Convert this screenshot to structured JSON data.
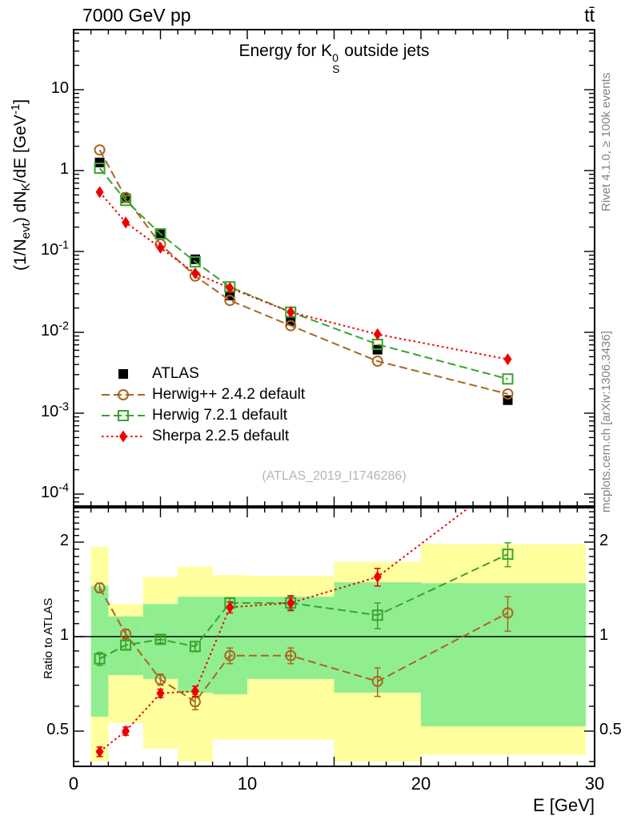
{
  "header": {
    "left_title": "7000 GeV pp",
    "right_title": "tt̄"
  },
  "side_notes": {
    "top_rotated": "Rivet 4.1.0, ≥ 100k events",
    "bottom_rotated": "mcplots.cern.ch [arXiv:1306.3436]"
  },
  "watermark": "(ATLAS_2019_I1746286)",
  "chart_data": {
    "type": "line",
    "title": "Energy for K^{0}_{S} outside jets",
    "xlabel": "E [GeV]",
    "ylabel": "(1/N_{evt}) dN_{K}/dE [GeV^{-1}]",
    "ratio_label": "Ratio to ATLAS",
    "x_range": [
      0,
      30
    ],
    "x_tick_labels": [
      "0",
      "10",
      "20",
      "30"
    ],
    "x_tick_values": [
      0,
      10,
      20,
      30
    ],
    "main_y_log": true,
    "main_y_range": [
      7.1e-05,
      55
    ],
    "main_y_ticks": [
      {
        "v": 10,
        "label": "10"
      },
      {
        "v": 1,
        "label": "1"
      },
      {
        "v": 0.1,
        "label": "10^{-1}"
      },
      {
        "v": 0.01,
        "label": "10^{-2}"
      },
      {
        "v": 0.001,
        "label": "10^{-3}"
      },
      {
        "v": 0.0001,
        "label": "10^{-4}"
      }
    ],
    "ratio_y_log": true,
    "ratio_y_range": [
      0.386,
      2.58
    ],
    "ratio_y_ticks": [
      {
        "v": 2,
        "label": "2"
      },
      {
        "v": 1,
        "label": "1"
      },
      {
        "v": 0.5,
        "label": "0.5"
      }
    ],
    "x": [
      1.5,
      3,
      5,
      7,
      9,
      12.5,
      17.5,
      25
    ],
    "bin_edges": [
      1,
      2,
      4,
      6,
      8,
      10,
      15,
      20,
      29.5
    ],
    "series": [
      {
        "name": "ATLAS",
        "color": "#000000",
        "marker": "filled-square",
        "line": "none",
        "values": [
          1.26,
          0.455,
          0.168,
          0.08,
          0.0285,
          0.0139,
          0.0061,
          0.00145
        ]
      },
      {
        "name": "Herwig++ 2.4.2 default",
        "color": "#aa6620",
        "marker": "open-circle",
        "line": "dashed",
        "values": [
          1.8,
          0.464,
          0.123,
          0.0496,
          0.0248,
          0.0121,
          0.0044,
          0.00173
        ],
        "ratio": [
          1.43,
          1.02,
          0.73,
          0.62,
          0.87,
          0.87,
          0.72,
          1.19
        ],
        "ratio_err": [
          0.05,
          0.035,
          0.03,
          0.035,
          0.05,
          0.05,
          0.075,
          0.15
        ]
      },
      {
        "name": "Herwig 7.2.1 default",
        "color": "#3aa32e",
        "marker": "open-square",
        "line": "dashed",
        "values": [
          1.07,
          0.428,
          0.165,
          0.0744,
          0.0365,
          0.0178,
          0.0071,
          0.00265
        ],
        "ratio": [
          0.85,
          0.94,
          0.98,
          0.93,
          1.28,
          1.28,
          1.17,
          1.83
        ],
        "ratio_err": [
          0.04,
          0.03,
          0.025,
          0.035,
          0.05,
          0.06,
          0.11,
          0.16
        ]
      },
      {
        "name": "Sherpa 2.2.5 default",
        "color": "#ee0000",
        "marker": "filled-diamond",
        "line": "dotted",
        "values": [
          0.542,
          0.228,
          0.111,
          0.0536,
          0.0353,
          0.0178,
          0.00946,
          0.00464
        ],
        "ratio": [
          0.43,
          0.5,
          0.66,
          0.67,
          1.24,
          1.28,
          1.55,
          3.2
        ],
        "ratio_err": [
          0.015,
          0.015,
          0.02,
          0.025,
          0.05,
          0.07,
          0.1,
          0
        ]
      }
    ],
    "bands": {
      "yellow_color": "#ffff9e",
      "green_color": "#90ee90",
      "yellow": [
        [
          0.4,
          1.93
        ],
        [
          0.53,
          1.27
        ],
        [
          0.44,
          1.55
        ],
        [
          0.4,
          1.67
        ],
        [
          0.47,
          1.57
        ],
        [
          0.47,
          1.56
        ],
        [
          0.4,
          1.73
        ],
        [
          0.42,
          1.97
        ]
      ],
      "green": [
        [
          0.556,
          1.45
        ],
        [
          0.754,
          1.16
        ],
        [
          0.733,
          1.27
        ],
        [
          0.663,
          1.34
        ],
        [
          0.655,
          1.34
        ],
        [
          0.733,
          1.34
        ],
        [
          0.663,
          1.49
        ],
        [
          0.518,
          1.48
        ]
      ]
    },
    "reference_line": 1.0
  }
}
